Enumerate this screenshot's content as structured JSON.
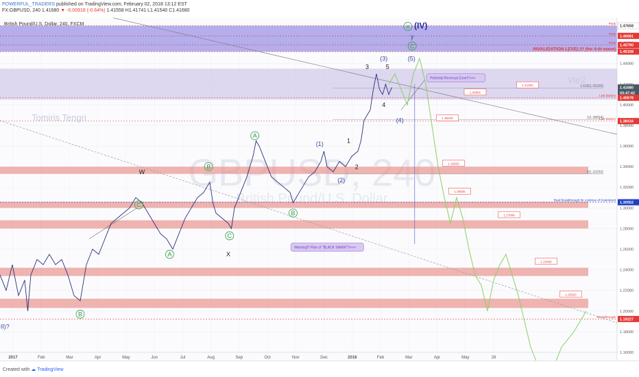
{
  "header": {
    "publisher": "POWERFUL_TRADERS",
    "published_text": "published on TradingView.com, February 02, 2018 13:12 EST",
    "symbol": "FX:GBPUSD, 240",
    "ohlc_open": "1.41680",
    "change": "-0.00918 (-0.64%)",
    "ohlc_rest": "1.41558 H1.41741 L1.41540 C1.41680",
    "change_symbol": "▼"
  },
  "chart_title": "British Pound/U.S. Dollar, 240, FXCM",
  "watermark": "GBPUSD, 240",
  "watermark_sub": "British Pound/U.S. Dollar",
  "author_label": "Tomiris Tengri",
  "var_label": "Var2",
  "footer": {
    "created_with": "Created with",
    "brand": "TradingView"
  },
  "chart_data": {
    "type": "line",
    "ylim": [
      1.16,
      1.475
    ],
    "x_ticks": [
      "2017",
      "Feb",
      "Mar",
      "Apr",
      "May",
      "Jun",
      "Jul",
      "Aug",
      "Sep",
      "Oct",
      "Nov",
      "Dec",
      "2018",
      "Feb",
      "Mar",
      "Apr",
      "May",
      "28"
    ],
    "y_ticks": [
      "1.46000",
      "1.44000",
      "1.42000",
      "1.40000",
      "1.38000",
      "1.36000",
      "1.34000",
      "1.32000",
      "1.30000",
      "1.28000",
      "1.26000",
      "1.24000",
      "1.22000",
      "1.20000",
      "1.18000",
      "1.16000"
    ],
    "price_tags": [
      {
        "label": "1.47658",
        "y": 1.4766,
        "bg": "#ffffff",
        "fg": "#333333"
      },
      {
        "label": "1.46681",
        "y": 1.4668,
        "bg": "#e53935",
        "fg": "#ffffff"
      },
      {
        "label": "1.45790",
        "y": 1.4579,
        "bg": "#e53935",
        "fg": "#ffffff"
      },
      {
        "label": "1.45158",
        "y": 1.4516,
        "bg": "#e53935",
        "fg": "#ffffff"
      },
      {
        "label": "1.41680",
        "y": 1.4168,
        "bg": "#455a64",
        "fg": "#ffffff"
      },
      {
        "label": "03:47:42",
        "y": 1.4115,
        "bg": "#455a64",
        "fg": "#ffffff"
      },
      {
        "label": "1.40678",
        "y": 1.4068,
        "bg": "#e53935",
        "fg": "#ffffff"
      },
      {
        "label": "1.38416",
        "y": 1.3842,
        "bg": "#e53935",
        "fg": "#ffffff"
      },
      {
        "label": "1.30552",
        "y": 1.3055,
        "bg": "#1e40c8",
        "fg": "#ffffff"
      },
      {
        "label": "1.19227",
        "y": 1.1923,
        "bg": "#e53935",
        "fg": "#ffffff"
      }
    ],
    "price_series": [
      [
        0.0,
        1.235
      ],
      [
        0.01,
        1.22
      ],
      [
        0.02,
        1.245
      ],
      [
        0.03,
        1.215
      ],
      [
        0.04,
        1.23
      ],
      [
        0.045,
        1.2
      ],
      [
        0.05,
        1.235
      ],
      [
        0.06,
        1.25
      ],
      [
        0.07,
        1.245
      ],
      [
        0.08,
        1.255
      ],
      [
        0.09,
        1.245
      ],
      [
        0.1,
        1.25
      ],
      [
        0.11,
        1.235
      ],
      [
        0.12,
        1.215
      ],
      [
        0.13,
        1.21
      ],
      [
        0.14,
        1.245
      ],
      [
        0.15,
        1.26
      ],
      [
        0.16,
        1.255
      ],
      [
        0.17,
        1.27
      ],
      [
        0.18,
        1.285
      ],
      [
        0.19,
        1.29
      ],
      [
        0.2,
        1.295
      ],
      [
        0.21,
        1.3
      ],
      [
        0.22,
        1.31
      ],
      [
        0.23,
        1.305
      ],
      [
        0.24,
        1.295
      ],
      [
        0.25,
        1.285
      ],
      [
        0.26,
        1.275
      ],
      [
        0.27,
        1.27
      ],
      [
        0.28,
        1.26
      ],
      [
        0.29,
        1.275
      ],
      [
        0.3,
        1.29
      ],
      [
        0.31,
        1.3
      ],
      [
        0.32,
        1.31
      ],
      [
        0.33,
        1.315
      ],
      [
        0.34,
        1.325
      ],
      [
        0.345,
        1.305
      ],
      [
        0.35,
        1.295
      ],
      [
        0.36,
        1.29
      ],
      [
        0.37,
        1.285
      ],
      [
        0.375,
        1.28
      ],
      [
        0.38,
        1.3
      ],
      [
        0.39,
        1.315
      ],
      [
        0.4,
        1.33
      ],
      [
        0.41,
        1.35
      ],
      [
        0.415,
        1.365
      ],
      [
        0.42,
        1.36
      ],
      [
        0.43,
        1.345
      ],
      [
        0.44,
        1.33
      ],
      [
        0.45,
        1.325
      ],
      [
        0.46,
        1.32
      ],
      [
        0.47,
        1.315
      ],
      [
        0.475,
        1.305
      ],
      [
        0.48,
        1.31
      ],
      [
        0.49,
        1.32
      ],
      [
        0.5,
        1.33
      ],
      [
        0.51,
        1.335
      ],
      [
        0.52,
        1.345
      ],
      [
        0.525,
        1.355
      ],
      [
        0.53,
        1.34
      ],
      [
        0.54,
        1.335
      ],
      [
        0.55,
        1.345
      ],
      [
        0.56,
        1.34
      ],
      [
        0.57,
        1.35
      ],
      [
        0.58,
        1.355
      ],
      [
        0.585,
        1.365
      ],
      [
        0.59,
        1.385
      ],
      [
        0.6,
        1.395
      ],
      [
        0.605,
        1.415
      ],
      [
        0.61,
        1.43
      ],
      [
        0.615,
        1.415
      ],
      [
        0.62,
        1.41
      ],
      [
        0.625,
        1.42
      ],
      [
        0.63,
        1.41
      ],
      [
        0.635,
        1.4168
      ]
    ],
    "projection_series": [
      [
        0.63,
        1.42
      ],
      [
        0.64,
        1.43
      ],
      [
        0.65,
        1.415
      ],
      [
        0.66,
        1.4
      ],
      [
        0.67,
        1.43
      ],
      [
        0.68,
        1.445
      ],
      [
        0.69,
        1.42
      ],
      [
        0.7,
        1.38
      ],
      [
        0.71,
        1.34
      ],
      [
        0.72,
        1.31
      ],
      [
        0.73,
        1.285
      ],
      [
        0.74,
        1.31
      ],
      [
        0.75,
        1.29
      ],
      [
        0.76,
        1.26
      ],
      [
        0.77,
        1.235
      ],
      [
        0.78,
        1.225
      ],
      [
        0.79,
        1.2
      ],
      [
        0.8,
        1.23
      ],
      [
        0.81,
        1.245
      ],
      [
        0.82,
        1.255
      ],
      [
        0.83,
        1.235
      ],
      [
        0.84,
        1.215
      ],
      [
        0.85,
        1.19
      ],
      [
        0.86,
        1.165
      ],
      [
        0.87,
        1.15
      ],
      [
        0.9,
        1.15
      ],
      [
        0.91,
        1.165
      ],
      [
        0.93,
        1.18
      ],
      [
        0.95,
        1.2
      ]
    ],
    "zones": [
      {
        "y1": 1.4765,
        "y2": 1.4516,
        "fill": "#7b6fe0",
        "opacity": 0.55
      },
      {
        "y1": 1.435,
        "y2": 1.405,
        "fill": "#c9c0e8",
        "opacity": 0.6
      },
      {
        "y1": 1.34,
        "y2": 1.333,
        "fill": "#e88c87",
        "opacity": 0.65
      },
      {
        "y1": 1.306,
        "y2": 1.3,
        "fill": "#e88c87",
        "opacity": 0.65
      },
      {
        "y1": 1.288,
        "y2": 1.28,
        "fill": "#e88c87",
        "opacity": 0.65
      },
      {
        "y1": 1.242,
        "y2": 1.234,
        "fill": "#e88c87",
        "opacity": 0.65
      },
      {
        "y1": 1.212,
        "y2": 1.203,
        "fill": "#e88c87",
        "opacity": 0.65
      }
    ],
    "price_boxes": [
      {
        "label": "1.41293",
        "x": 0.855,
        "y": 1.419
      },
      {
        "label": "1.40681",
        "x": 0.77,
        "y": 1.412
      },
      {
        "label": "1.38440",
        "x": 0.725,
        "y": 1.387
      },
      {
        "label": "1.32920",
        "x": 0.735,
        "y": 1.343
      },
      {
        "label": "1.30505",
        "x": 0.745,
        "y": 1.316
      },
      {
        "label": "1.27899",
        "x": 0.825,
        "y": 1.293
      },
      {
        "label": "1.23495",
        "x": 0.885,
        "y": 1.248
      },
      {
        "label": "1.20520",
        "x": 0.925,
        "y": 1.216
      }
    ],
    "fib_labels": [
      {
        "label": "1.618(1.41626)",
        "y": 1.4163
      },
      {
        "label": "1(1.38554)",
        "y": 1.3855
      },
      {
        "label": "0(1.33293)",
        "y": 1.3329
      }
    ],
    "level_notes": [
      {
        "label": "Peak",
        "y": 1.4766
      },
      {
        "label": "Peak",
        "y": 1.4668
      },
      {
        "label": "Peak",
        "y": 1.4579
      },
      {
        "label": "INVALIDATION LEVEL!!! (for 4-th wave)",
        "y": 1.4516
      },
      {
        "label": "Last Bottom",
        "y": 1.4068
      },
      {
        "label": "Last Bottom",
        "y": 1.3842
      },
      {
        "label": "Real Breakthrough for continue of Downtrend",
        "y": 1.3055
      },
      {
        "label": "Breakthrough",
        "y": 1.1923
      }
    ],
    "wave_labels": [
      {
        "text": "(III)?",
        "x": 0.005,
        "y": 1.185,
        "color": "#3b49a0",
        "circle": false
      },
      {
        "text": "B",
        "x": 0.13,
        "y": 1.197,
        "color": "#2e9e44",
        "circle": true
      },
      {
        "text": "C",
        "x": 0.225,
        "y": 1.303,
        "color": "#2e9e44",
        "circle": true
      },
      {
        "text": "W",
        "x": 0.23,
        "y": 1.335,
        "color": "#222222",
        "circle": false
      },
      {
        "text": "A",
        "x": 0.275,
        "y": 1.255,
        "color": "#2e9e44",
        "circle": true
      },
      {
        "text": "B",
        "x": 0.338,
        "y": 1.34,
        "color": "#2e9e44",
        "circle": true
      },
      {
        "text": "C",
        "x": 0.372,
        "y": 1.273,
        "color": "#2e9e44",
        "circle": true
      },
      {
        "text": "X",
        "x": 0.37,
        "y": 1.255,
        "color": "#222222",
        "circle": false
      },
      {
        "text": "A",
        "x": 0.413,
        "y": 1.37,
        "color": "#2e9e44",
        "circle": true
      },
      {
        "text": "B",
        "x": 0.475,
        "y": 1.295,
        "color": "#2e9e44",
        "circle": true
      },
      {
        "text": "(1)",
        "x": 0.518,
        "y": 1.362,
        "color": "#3b49a0",
        "circle": false
      },
      {
        "text": "(2)",
        "x": 0.553,
        "y": 1.327,
        "color": "#3b49a0",
        "circle": false
      },
      {
        "text": "1",
        "x": 0.565,
        "y": 1.365,
        "color": "#222222",
        "circle": false
      },
      {
        "text": "2",
        "x": 0.578,
        "y": 1.34,
        "color": "#222222",
        "circle": false
      },
      {
        "text": "3",
        "x": 0.595,
        "y": 1.437,
        "color": "#222222",
        "circle": false
      },
      {
        "text": "4",
        "x": 0.622,
        "y": 1.4,
        "color": "#222222",
        "circle": false
      },
      {
        "text": "5",
        "x": 0.628,
        "y": 1.437,
        "color": "#222222",
        "circle": false
      },
      {
        "text": "(3)",
        "x": 0.622,
        "y": 1.445,
        "color": "#3b49a0",
        "circle": false
      },
      {
        "text": "(4)",
        "x": 0.648,
        "y": 1.385,
        "color": "#3b49a0",
        "circle": false
      },
      {
        "text": "(5)",
        "x": 0.667,
        "y": 1.445,
        "color": "#3b49a0",
        "circle": false
      },
      {
        "text": "C",
        "x": 0.668,
        "y": 1.457,
        "color": "#2e9e44",
        "circle": true
      },
      {
        "text": "y",
        "x": 0.668,
        "y": 1.466,
        "color": "#3b49a0",
        "circle": false
      },
      {
        "text": "x",
        "x": 0.661,
        "y": 1.476,
        "color": "#2e9e44",
        "circle": true
      },
      {
        "text": "(IV)",
        "x": 0.682,
        "y": 1.476,
        "color": "#2a2a9a",
        "circle": false
      }
    ],
    "callouts": [
      {
        "text": "Potential Reversal Zone!!!>>>",
        "x": 0.698,
        "y": 1.426
      },
      {
        "text": "Warning!!! Risk of \"BLACK SWAN\"!!!>>>",
        "x": 0.478,
        "y": 1.262
      }
    ]
  }
}
